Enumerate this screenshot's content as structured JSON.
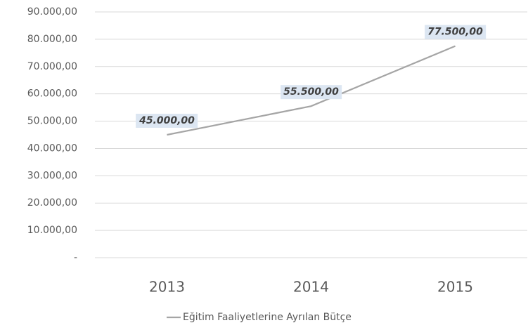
{
  "chart_data": {
    "type": "line",
    "categories": [
      "2013",
      "2014",
      "2015"
    ],
    "series": [
      {
        "name": "Eğitim Faaliyetlerine Ayrılan Bütçe",
        "color": "#a5a5a5",
        "values": [
          45000,
          55500,
          77500
        ],
        "value_labels": [
          "45.000,00",
          "55.500,00",
          "77.500,00"
        ]
      }
    ],
    "ylim": [
      0,
      90000
    ],
    "yticks": [
      {
        "value": 0,
        "label": "-"
      },
      {
        "value": 10000,
        "label": "10.000,00"
      },
      {
        "value": 20000,
        "label": "20.000,00"
      },
      {
        "value": 30000,
        "label": "30.000,00"
      },
      {
        "value": 40000,
        "label": "40.000,00"
      },
      {
        "value": 50000,
        "label": "50.000,00"
      },
      {
        "value": 60000,
        "label": "60.000,00"
      },
      {
        "value": 70000,
        "label": "70.000,00"
      },
      {
        "value": 80000,
        "label": "80.000,00"
      },
      {
        "value": 90000,
        "label": "90.000,00"
      }
    ],
    "grid": true,
    "legend": "bottom"
  }
}
